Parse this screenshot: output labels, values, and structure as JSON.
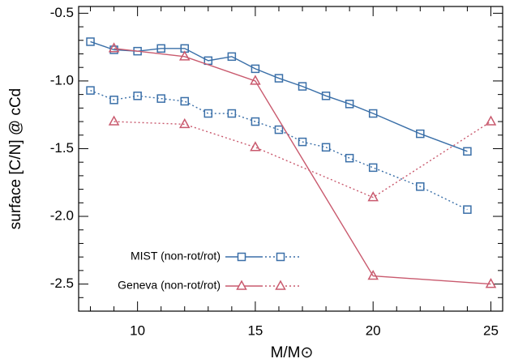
{
  "chart_data": {
    "type": "line",
    "x_label": "M/M⊙",
    "y_label": "surface [C/N] @ cCd",
    "xlim": [
      7.5,
      25.5
    ],
    "ylim": [
      -2.7,
      -0.45
    ],
    "xticks": [
      10,
      15,
      20,
      25
    ],
    "yticks": [
      -0.5,
      {
        "value": -1,
        "label": "-1.0"
      },
      -1.5,
      {
        "value": -2,
        "label": "-2.0"
      },
      -2.5
    ],
    "xminorticks": [
      8,
      9,
      11,
      12,
      13,
      14,
      16,
      17,
      18,
      19,
      21,
      22,
      23,
      24
    ],
    "yminorticks": [
      -0.6,
      -0.7,
      -0.8,
      -0.9,
      -1.1,
      -1.2,
      -1.3,
      -1.4,
      -1.6,
      -1.7,
      -1.8,
      -1.9,
      -2.1,
      -2.2,
      -2.3,
      -2.4,
      -2.6
    ],
    "legend": "lower left",
    "series": [
      {
        "name": "MIST (non-rot/rot)",
        "color": "#3a6fa8",
        "marker": "square",
        "x": [
          8,
          9,
          10,
          11,
          12,
          13,
          14,
          15,
          16,
          17,
          18,
          19,
          20,
          22,
          24
        ],
        "values": [
          -0.71,
          -0.77,
          -0.78,
          -0.76,
          -0.76,
          -0.85,
          -0.82,
          -0.91,
          -0.98,
          -1.04,
          -1.11,
          -1.17,
          -1.24,
          -1.39,
          -1.52
        ],
        "values_rot": [
          -1.07,
          -1.14,
          -1.11,
          -1.13,
          -1.15,
          -1.24,
          -1.24,
          -1.3,
          -1.36,
          -1.45,
          -1.49,
          -1.57,
          -1.64,
          -1.78,
          -1.95
        ]
      },
      {
        "name": "Geneva (non-rot/rot)",
        "color": "#c95a6e",
        "marker": "triangle",
        "x": [
          9,
          12,
          15,
          20,
          25
        ],
        "values": [
          -0.76,
          -0.82,
          -1.0,
          -2.44,
          -2.5
        ],
        "values_rot": [
          -1.3,
          -1.32,
          -1.49,
          -1.86,
          -1.3
        ]
      }
    ]
  }
}
